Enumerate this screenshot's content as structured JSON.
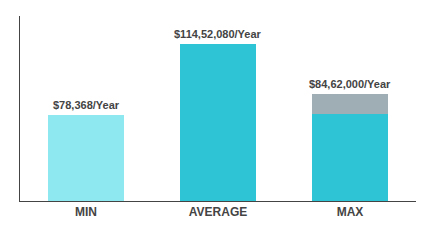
{
  "chart_data": {
    "type": "bar",
    "categories": [
      "MIN",
      "AVERAGE",
      "MAX"
    ],
    "series": [
      {
        "colors": [
          "#8de8f0",
          "#2ec4d6",
          "#2ec4d6"
        ],
        "values": [
          55,
          100,
          55.76
        ]
      },
      {
        "color": "#9eaeb4",
        "values": [
          null,
          null,
          12.24
        ]
      }
    ],
    "stacked": true,
    "annotations": [
      "$78,368/Year",
      "$114,52,080/Year",
      "$84,62,000/Year"
    ],
    "ylim": [
      0,
      118
    ],
    "grid": false,
    "tick_labels": "x"
  }
}
